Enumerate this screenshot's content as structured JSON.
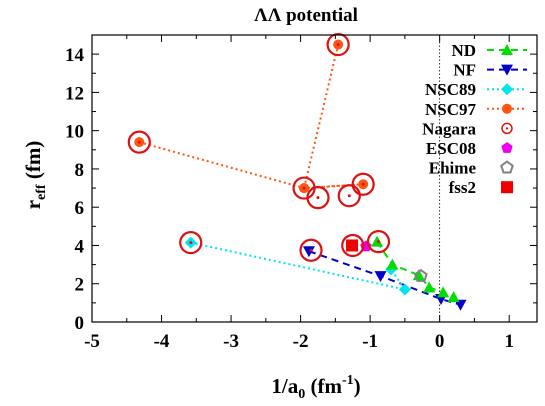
{
  "chart_data": {
    "type": "scatter",
    "title": "ΛΛ potential",
    "xlabel": "1/a",
    "xlabel_sub": "0",
    "xlabel_unit_open": " (fm",
    "xlabel_unit_sup": "-1",
    "xlabel_unit_close": ")",
    "ylabel": "r",
    "ylabel_sub": "eff",
    "ylabel_unit": " (fm)",
    "xlim": [
      -5,
      1.4
    ],
    "ylim": [
      0,
      15
    ],
    "x_ticks": [
      -5,
      -4,
      -3,
      -2,
      -1,
      0,
      1
    ],
    "x_tick_labels": [
      "-5",
      "-4",
      "-3",
      "-2",
      "-1",
      "0",
      "1"
    ],
    "y_ticks": [
      0,
      2,
      4,
      6,
      8,
      10,
      12,
      14
    ],
    "y_tick_labels": [
      "0",
      "2",
      "4",
      "6",
      "8",
      "10",
      "12",
      "14"
    ],
    "vertical_reference_line_x": 0,
    "legend_position": "top-right",
    "series": [
      {
        "name": "ND",
        "color": "#00dd00",
        "marker": "triangle-up",
        "line": "dashed",
        "x": [
          -0.9,
          -0.68,
          -0.3,
          -0.15,
          0.05,
          0.2
        ],
        "y": [
          4.2,
          3.0,
          2.45,
          1.8,
          1.55,
          1.3
        ]
      },
      {
        "name": "NF",
        "color": "#0000cc",
        "marker": "triangle-down",
        "line": "dashed",
        "x": [
          -1.88,
          -0.85,
          0.02,
          0.3
        ],
        "y": [
          3.7,
          2.4,
          1.2,
          0.9
        ]
      },
      {
        "name": "NSC89",
        "color": "#00e5ee",
        "marker": "diamond",
        "line": "dotted",
        "x": [
          -3.58,
          -0.5,
          -0.7
        ],
        "y": [
          4.15,
          1.7,
          2.75
        ]
      },
      {
        "name": "NSC97",
        "color": "#ff5511",
        "marker": "circle",
        "line": "dotted",
        "x": [
          -4.32,
          -1.95,
          -1.1,
          -1.95,
          -1.46
        ],
        "y": [
          9.4,
          7.0,
          7.2,
          7.0,
          14.5
        ]
      },
      {
        "name": "Nagara",
        "color": "#dd1111",
        "marker": "open-circle-dot",
        "line": "none",
        "x": [
          -4.32,
          -1.95,
          -1.1,
          -1.46,
          -1.85,
          -3.58,
          -1.25,
          -0.88,
          -1.75,
          -1.3
        ],
        "y": [
          9.4,
          7.0,
          7.2,
          14.5,
          3.75,
          4.15,
          4.0,
          4.2,
          6.5,
          6.6
        ]
      },
      {
        "name": "ESC08",
        "color": "#ee00ee",
        "marker": "pentagon",
        "line": "none",
        "x": [
          -1.06
        ],
        "y": [
          3.95
        ]
      },
      {
        "name": "Ehime",
        "color": "#808080",
        "marker": "open-pentagon",
        "line": "none",
        "x": [
          -0.27
        ],
        "y": [
          2.4
        ]
      },
      {
        "name": "fss2",
        "color": "#ee0000",
        "marker": "square",
        "line": "none",
        "x": [
          -1.26
        ],
        "y": [
          4.0
        ]
      }
    ]
  }
}
